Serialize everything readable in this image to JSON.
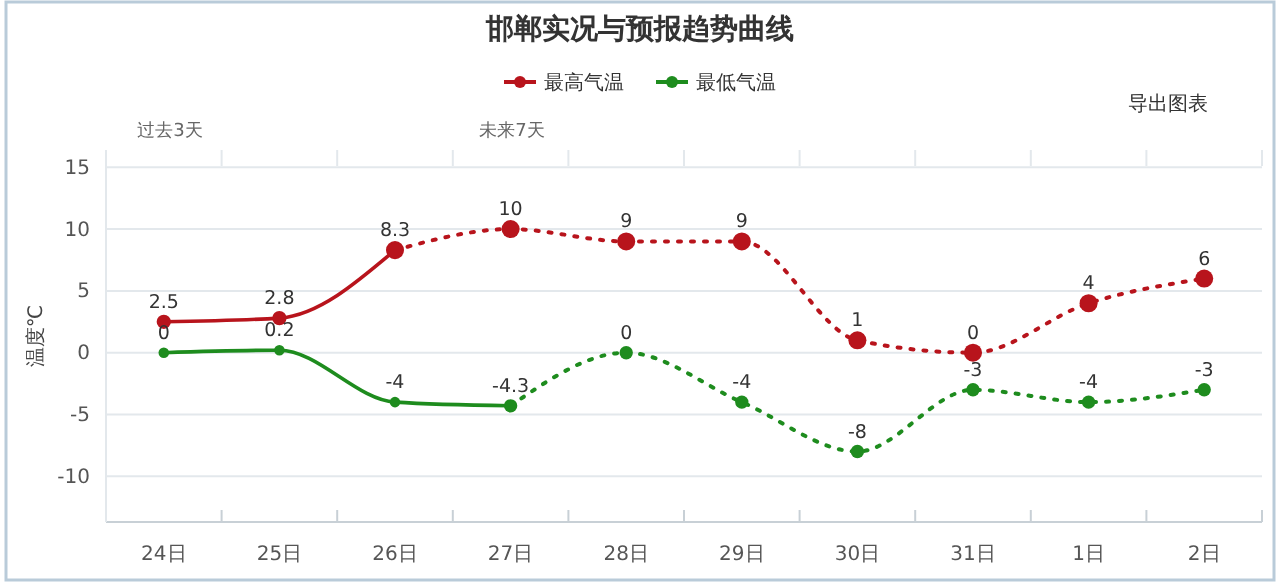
{
  "chart_data": {
    "type": "line",
    "title": "邯郸实况与预报趋势曲线",
    "ylabel": "温度℃",
    "categories": [
      "24日",
      "25日",
      "26日",
      "27日",
      "28日",
      "29日",
      "30日",
      "31日",
      "1日",
      "2日"
    ],
    "series": [
      {
        "name": "最高气温",
        "color": "#b8141c",
        "line_style": "solid",
        "values": [
          2.5,
          2.8,
          8.3,
          null,
          null,
          null,
          null,
          null,
          null,
          null
        ]
      },
      {
        "color": "#b8141c",
        "line_style": "dotted",
        "values": [
          null,
          null,
          8.3,
          10,
          9,
          9,
          1,
          0,
          4,
          6
        ],
        "value_labels": [
          null,
          null,
          null,
          "10",
          "9",
          "9",
          "1",
          "0",
          "4",
          "6"
        ]
      },
      {
        "name": "最低气温",
        "color": "#1e8c1e",
        "line_style": "solid",
        "values": [
          0,
          0.2,
          -4,
          -4.3,
          null,
          null,
          null,
          null,
          null,
          null
        ]
      },
      {
        "color": "#1e8c1e",
        "line_style": "dotted",
        "values": [
          null,
          null,
          null,
          -4.3,
          0,
          -4,
          -8,
          -3,
          -4,
          -3
        ],
        "value_labels": [
          null,
          null,
          null,
          null,
          "0",
          "-4",
          "-8",
          "-3",
          "-4",
          "-3"
        ]
      }
    ],
    "ylim": [
      -13.7,
      16.4
    ],
    "yticks": [
      -10,
      -5,
      0,
      5,
      10,
      15
    ],
    "grid": "y",
    "legend": "top",
    "marker": "circle",
    "data_labels": true,
    "annotations": [
      "过去3天",
      "未来7天",
      "导出图表"
    ]
  }
}
